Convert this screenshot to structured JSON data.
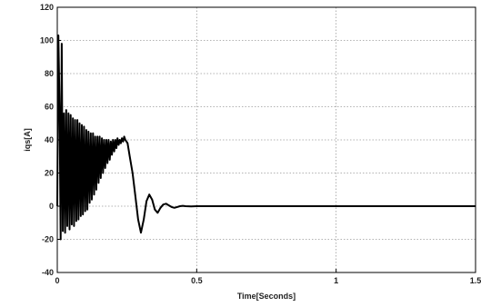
{
  "chart_data": {
    "type": "line",
    "title": "",
    "xlabel": "Time[Seconds]",
    "ylabel": "iqs[A]",
    "xlim": [
      0,
      1.5
    ],
    "ylim": [
      -40,
      120
    ],
    "x_ticks": [
      "0",
      "0.5",
      "1",
      "1.5"
    ],
    "y_ticks": [
      "-40",
      "-20",
      "0",
      "20",
      "40",
      "60",
      "80",
      "100",
      "120"
    ],
    "grid": true,
    "line_color": "#000000",
    "series": [
      {
        "name": "",
        "x": [
          0.0,
          0.004,
          0.008,
          0.012,
          0.016,
          0.02,
          0.024,
          0.028,
          0.032,
          0.036,
          0.04,
          0.044,
          0.048,
          0.052,
          0.056,
          0.06,
          0.064,
          0.068,
          0.072,
          0.076,
          0.08,
          0.084,
          0.088,
          0.092,
          0.096,
          0.1,
          0.104,
          0.108,
          0.112,
          0.116,
          0.12,
          0.124,
          0.128,
          0.132,
          0.136,
          0.14,
          0.144,
          0.148,
          0.152,
          0.156,
          0.16,
          0.164,
          0.168,
          0.172,
          0.176,
          0.18,
          0.184,
          0.188,
          0.192,
          0.196,
          0.2,
          0.204,
          0.208,
          0.212,
          0.216,
          0.22,
          0.224,
          0.228,
          0.232,
          0.236,
          0.24,
          0.244,
          0.248,
          0.252,
          0.256,
          0.26,
          0.27,
          0.28,
          0.29,
          0.3,
          0.31,
          0.32,
          0.33,
          0.34,
          0.35,
          0.36,
          0.37,
          0.38,
          0.39,
          0.4,
          0.41,
          0.42,
          0.43,
          0.44,
          0.45,
          0.46,
          0.48,
          0.5,
          0.55,
          0.6,
          0.7,
          0.8,
          1.0,
          1.2,
          1.5
        ],
        "y": [
          0,
          103,
          60,
          -20,
          98,
          -15,
          56,
          -16,
          58,
          -12,
          56,
          -14,
          55,
          -11,
          53,
          -12,
          52,
          -9,
          52,
          -8,
          50,
          -6,
          49,
          -5,
          48,
          -3,
          46,
          -2,
          45,
          2,
          44,
          4,
          44,
          7,
          42,
          10,
          42,
          14,
          42,
          17,
          41,
          20,
          40,
          23,
          40,
          26,
          40,
          28,
          39,
          31,
          40,
          33,
          40,
          35,
          41,
          37,
          40,
          38,
          41,
          39,
          42,
          40,
          39,
          38,
          34,
          30,
          20,
          6,
          -8,
          -16,
          -8,
          3,
          7,
          4,
          -2,
          -4,
          -1,
          1,
          1.5,
          0.5,
          -0.5,
          -1,
          -0.5,
          0,
          0.2,
          0,
          -0.1,
          0,
          0,
          0,
          0,
          0,
          0,
          0,
          0
        ]
      }
    ]
  }
}
